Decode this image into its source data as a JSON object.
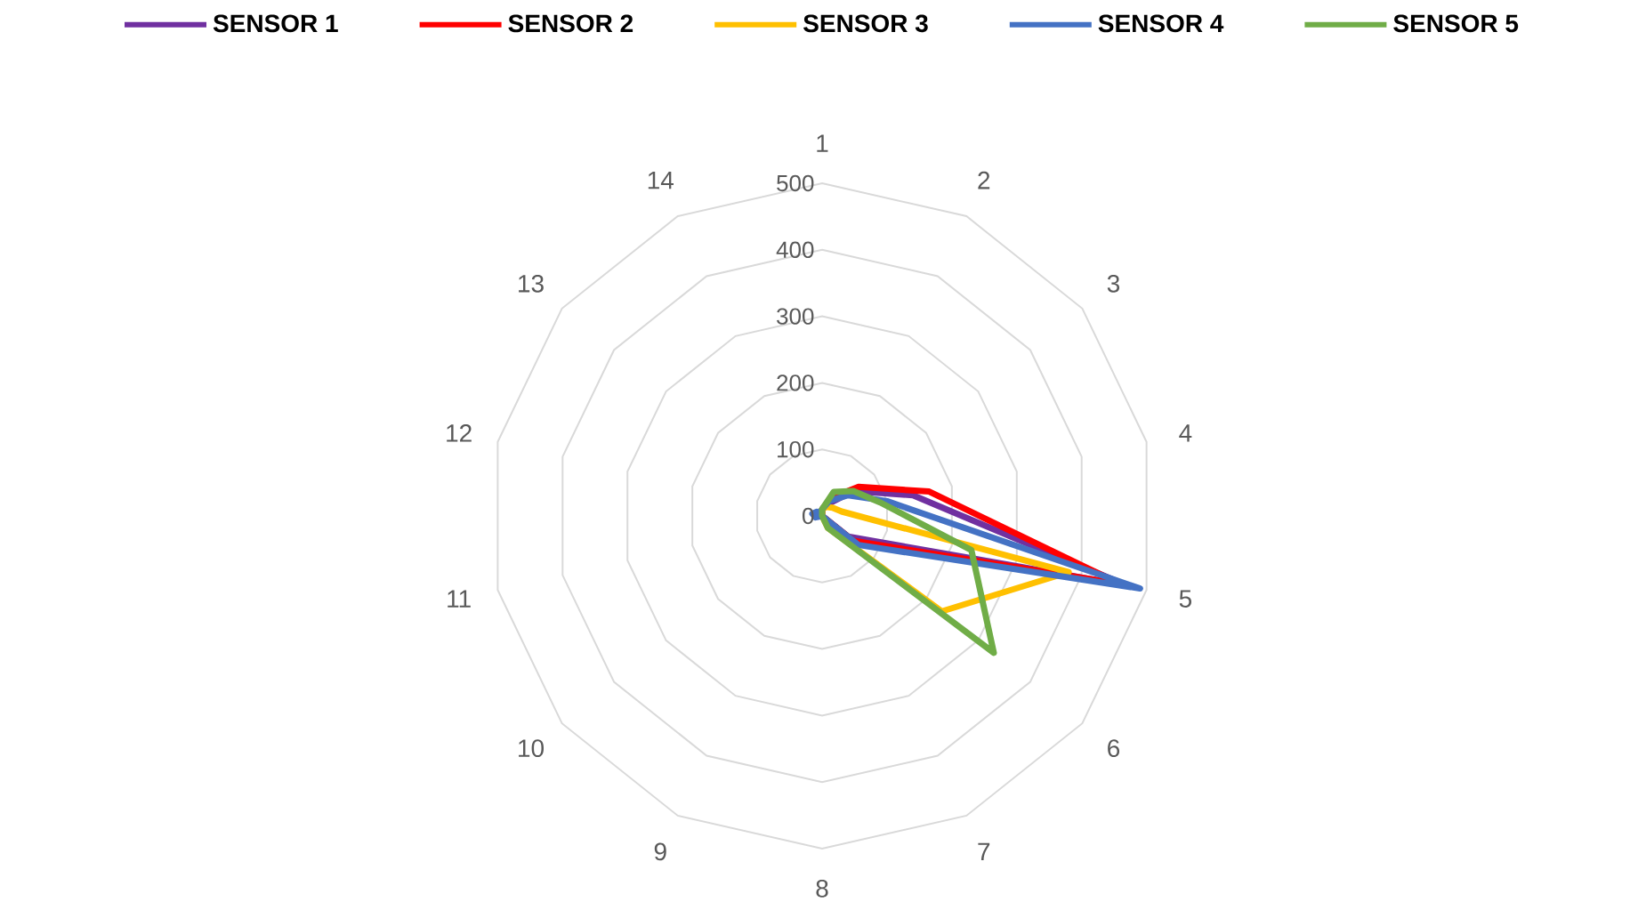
{
  "chart_data": {
    "type": "radar",
    "categories": [
      "1",
      "2",
      "3",
      "4",
      "5",
      "6",
      "7",
      "8",
      "9",
      "10",
      "11",
      "12",
      "13",
      "14"
    ],
    "series": [
      {
        "name": "SENSOR 1",
        "color": "#7030a0",
        "values": [
          10,
          20,
          60,
          140,
          470,
          50,
          0,
          0,
          0,
          0,
          0,
          0,
          0,
          0
        ]
      },
      {
        "name": "SENSOR 2",
        "color": "#ff0000",
        "values": [
          10,
          30,
          70,
          165,
          460,
          60,
          0,
          0,
          0,
          0,
          0,
          0,
          0,
          0
        ]
      },
      {
        "name": "SENSOR 3",
        "color": "#ffc000",
        "values": [
          10,
          15,
          20,
          30,
          380,
          230,
          20,
          0,
          0,
          0,
          0,
          0,
          0,
          0
        ]
      },
      {
        "name": "SENSOR 4",
        "color": "#4472c4",
        "values": [
          10,
          25,
          50,
          100,
          490,
          70,
          0,
          0,
          0,
          0,
          10,
          15,
          10,
          5
        ]
      },
      {
        "name": "SENSOR 5",
        "color": "#70ad47",
        "values": [
          10,
          40,
          60,
          90,
          230,
          330,
          20,
          0,
          0,
          0,
          0,
          0,
          0,
          0
        ]
      }
    ],
    "ylim": [
      0,
      500
    ],
    "yticks": [
      0,
      100,
      200,
      300,
      400,
      500
    ],
    "grid": true,
    "legend": "top",
    "line_style": "solid",
    "marker": "none"
  }
}
